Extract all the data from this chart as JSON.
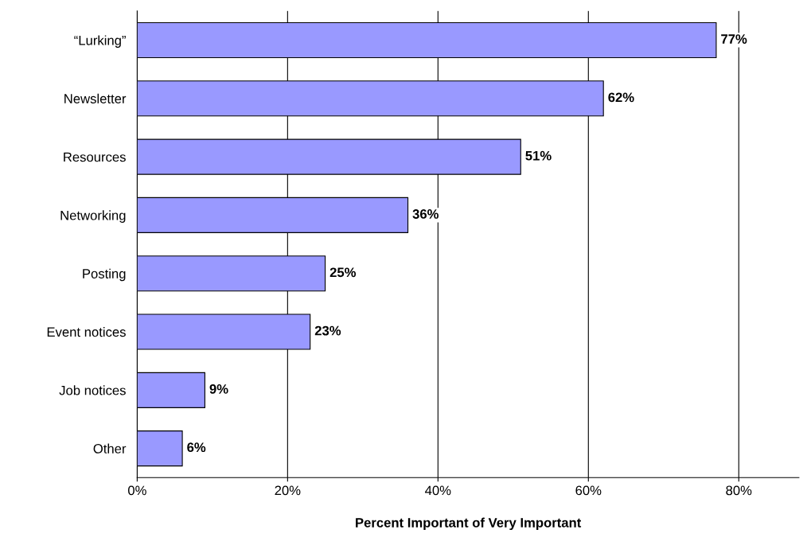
{
  "chart_data": {
    "type": "bar",
    "orientation": "horizontal",
    "xlabel": "Percent Important of Very Important",
    "categories": [
      "“Lurking”",
      "Newsletter",
      "Resources",
      "Networking",
      "Posting",
      "Event notices",
      "Job notices",
      "Other"
    ],
    "values": [
      77,
      62,
      51,
      36,
      25,
      23,
      9,
      6
    ],
    "color": "#9999ff",
    "value_labels": [
      "77%",
      "62%",
      "51%",
      "36%",
      "25%",
      "23%",
      "9%",
      "6%"
    ],
    "xlim": [
      0,
      88
    ],
    "xticks": [
      {
        "value": 0,
        "label": "0%"
      },
      {
        "value": 20,
        "label": "20%"
      },
      {
        "value": 40,
        "label": "40%"
      },
      {
        "value": 60,
        "label": "60%"
      },
      {
        "value": 80,
        "label": "80%"
      }
    ],
    "grid": "x",
    "legend": false
  }
}
